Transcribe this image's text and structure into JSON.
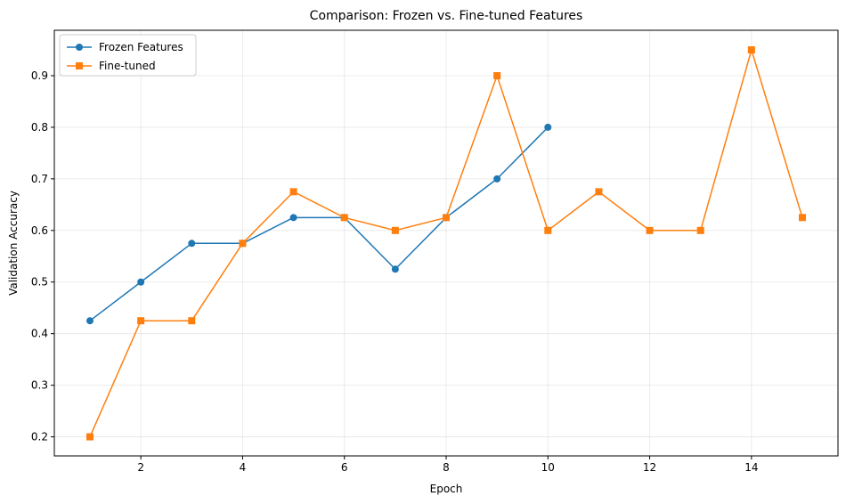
{
  "chart_data": {
    "type": "line",
    "title": "Comparison: Frozen vs. Fine-tuned Features",
    "xlabel": "Epoch",
    "ylabel": "Validation Accuracy",
    "xlim": [
      0.3,
      15.7
    ],
    "ylim": [
      0.163,
      0.988
    ],
    "xticks": [
      2,
      4,
      6,
      8,
      10,
      12,
      14
    ],
    "yticks": [
      0.2,
      0.3,
      0.4,
      0.5,
      0.6,
      0.7,
      0.8,
      0.9
    ],
    "grid": true,
    "legend_position": "top-left",
    "series": [
      {
        "name": "Frozen Features",
        "color": "#1f77b4",
        "marker": "circle",
        "x": [
          1,
          2,
          3,
          4,
          5,
          6,
          7,
          8,
          9,
          10
        ],
        "y": [
          0.425,
          0.5,
          0.575,
          0.575,
          0.625,
          0.625,
          0.525,
          0.625,
          0.7,
          0.8
        ]
      },
      {
        "name": "Fine-tuned",
        "color": "#ff7f0e",
        "marker": "square",
        "x": [
          1,
          2,
          3,
          4,
          5,
          6,
          7,
          8,
          9,
          10,
          11,
          12,
          13,
          14,
          15
        ],
        "y": [
          0.2,
          0.425,
          0.425,
          0.575,
          0.675,
          0.625,
          0.6,
          0.625,
          0.9,
          0.6,
          0.675,
          0.6,
          0.6,
          0.95,
          0.625
        ]
      }
    ]
  }
}
